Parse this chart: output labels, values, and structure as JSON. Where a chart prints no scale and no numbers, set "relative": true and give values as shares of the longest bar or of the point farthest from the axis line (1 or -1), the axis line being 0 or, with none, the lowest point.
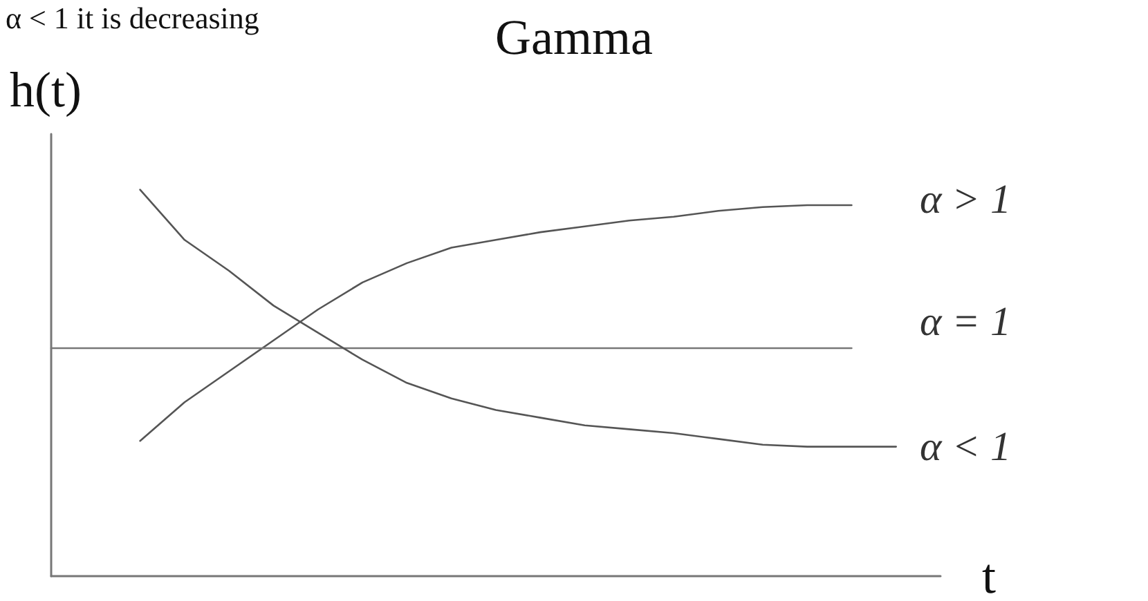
{
  "chart_data": {
    "type": "line",
    "relative": true,
    "title": "Gamma",
    "ylabel": "h(t)",
    "xlabel": "t",
    "annotations": [
      "α < 1 it is decreasing"
    ],
    "categories": [
      null,
      null,
      null,
      null,
      null,
      null,
      null,
      null,
      null,
      null,
      null,
      null,
      null,
      null,
      null,
      null,
      null,
      null,
      null,
      null,
      null
    ],
    "legend": false,
    "grid": false,
    "marker": "none",
    "series": [
      {
        "name": "α > 1",
        "color": "#555555",
        "values": [
          null,
          null,
          0.35,
          0.45,
          0.53,
          0.61,
          0.69,
          0.76,
          0.81,
          0.85,
          0.87,
          0.89,
          0.905,
          0.92,
          0.93,
          0.945,
          0.955,
          0.96,
          0.96,
          null,
          null
        ]
      },
      {
        "name": "α = 1",
        "color": "#777777",
        "values": [
          0.59,
          0.59,
          0.59,
          0.59,
          0.59,
          0.59,
          0.59,
          0.59,
          0.59,
          0.59,
          0.59,
          0.59,
          0.59,
          0.59,
          0.59,
          0.59,
          0.59,
          0.59,
          0.59,
          null,
          null
        ]
      },
      {
        "name": "α < 1",
        "color": "#555555",
        "values": [
          null,
          null,
          1,
          0.87,
          0.79,
          0.7,
          0.63,
          0.56,
          0.5,
          0.46,
          0.43,
          0.41,
          0.39,
          0.38,
          0.37,
          0.355,
          0.34,
          0.335,
          0.335,
          0.335,
          null
        ]
      }
    ]
  }
}
